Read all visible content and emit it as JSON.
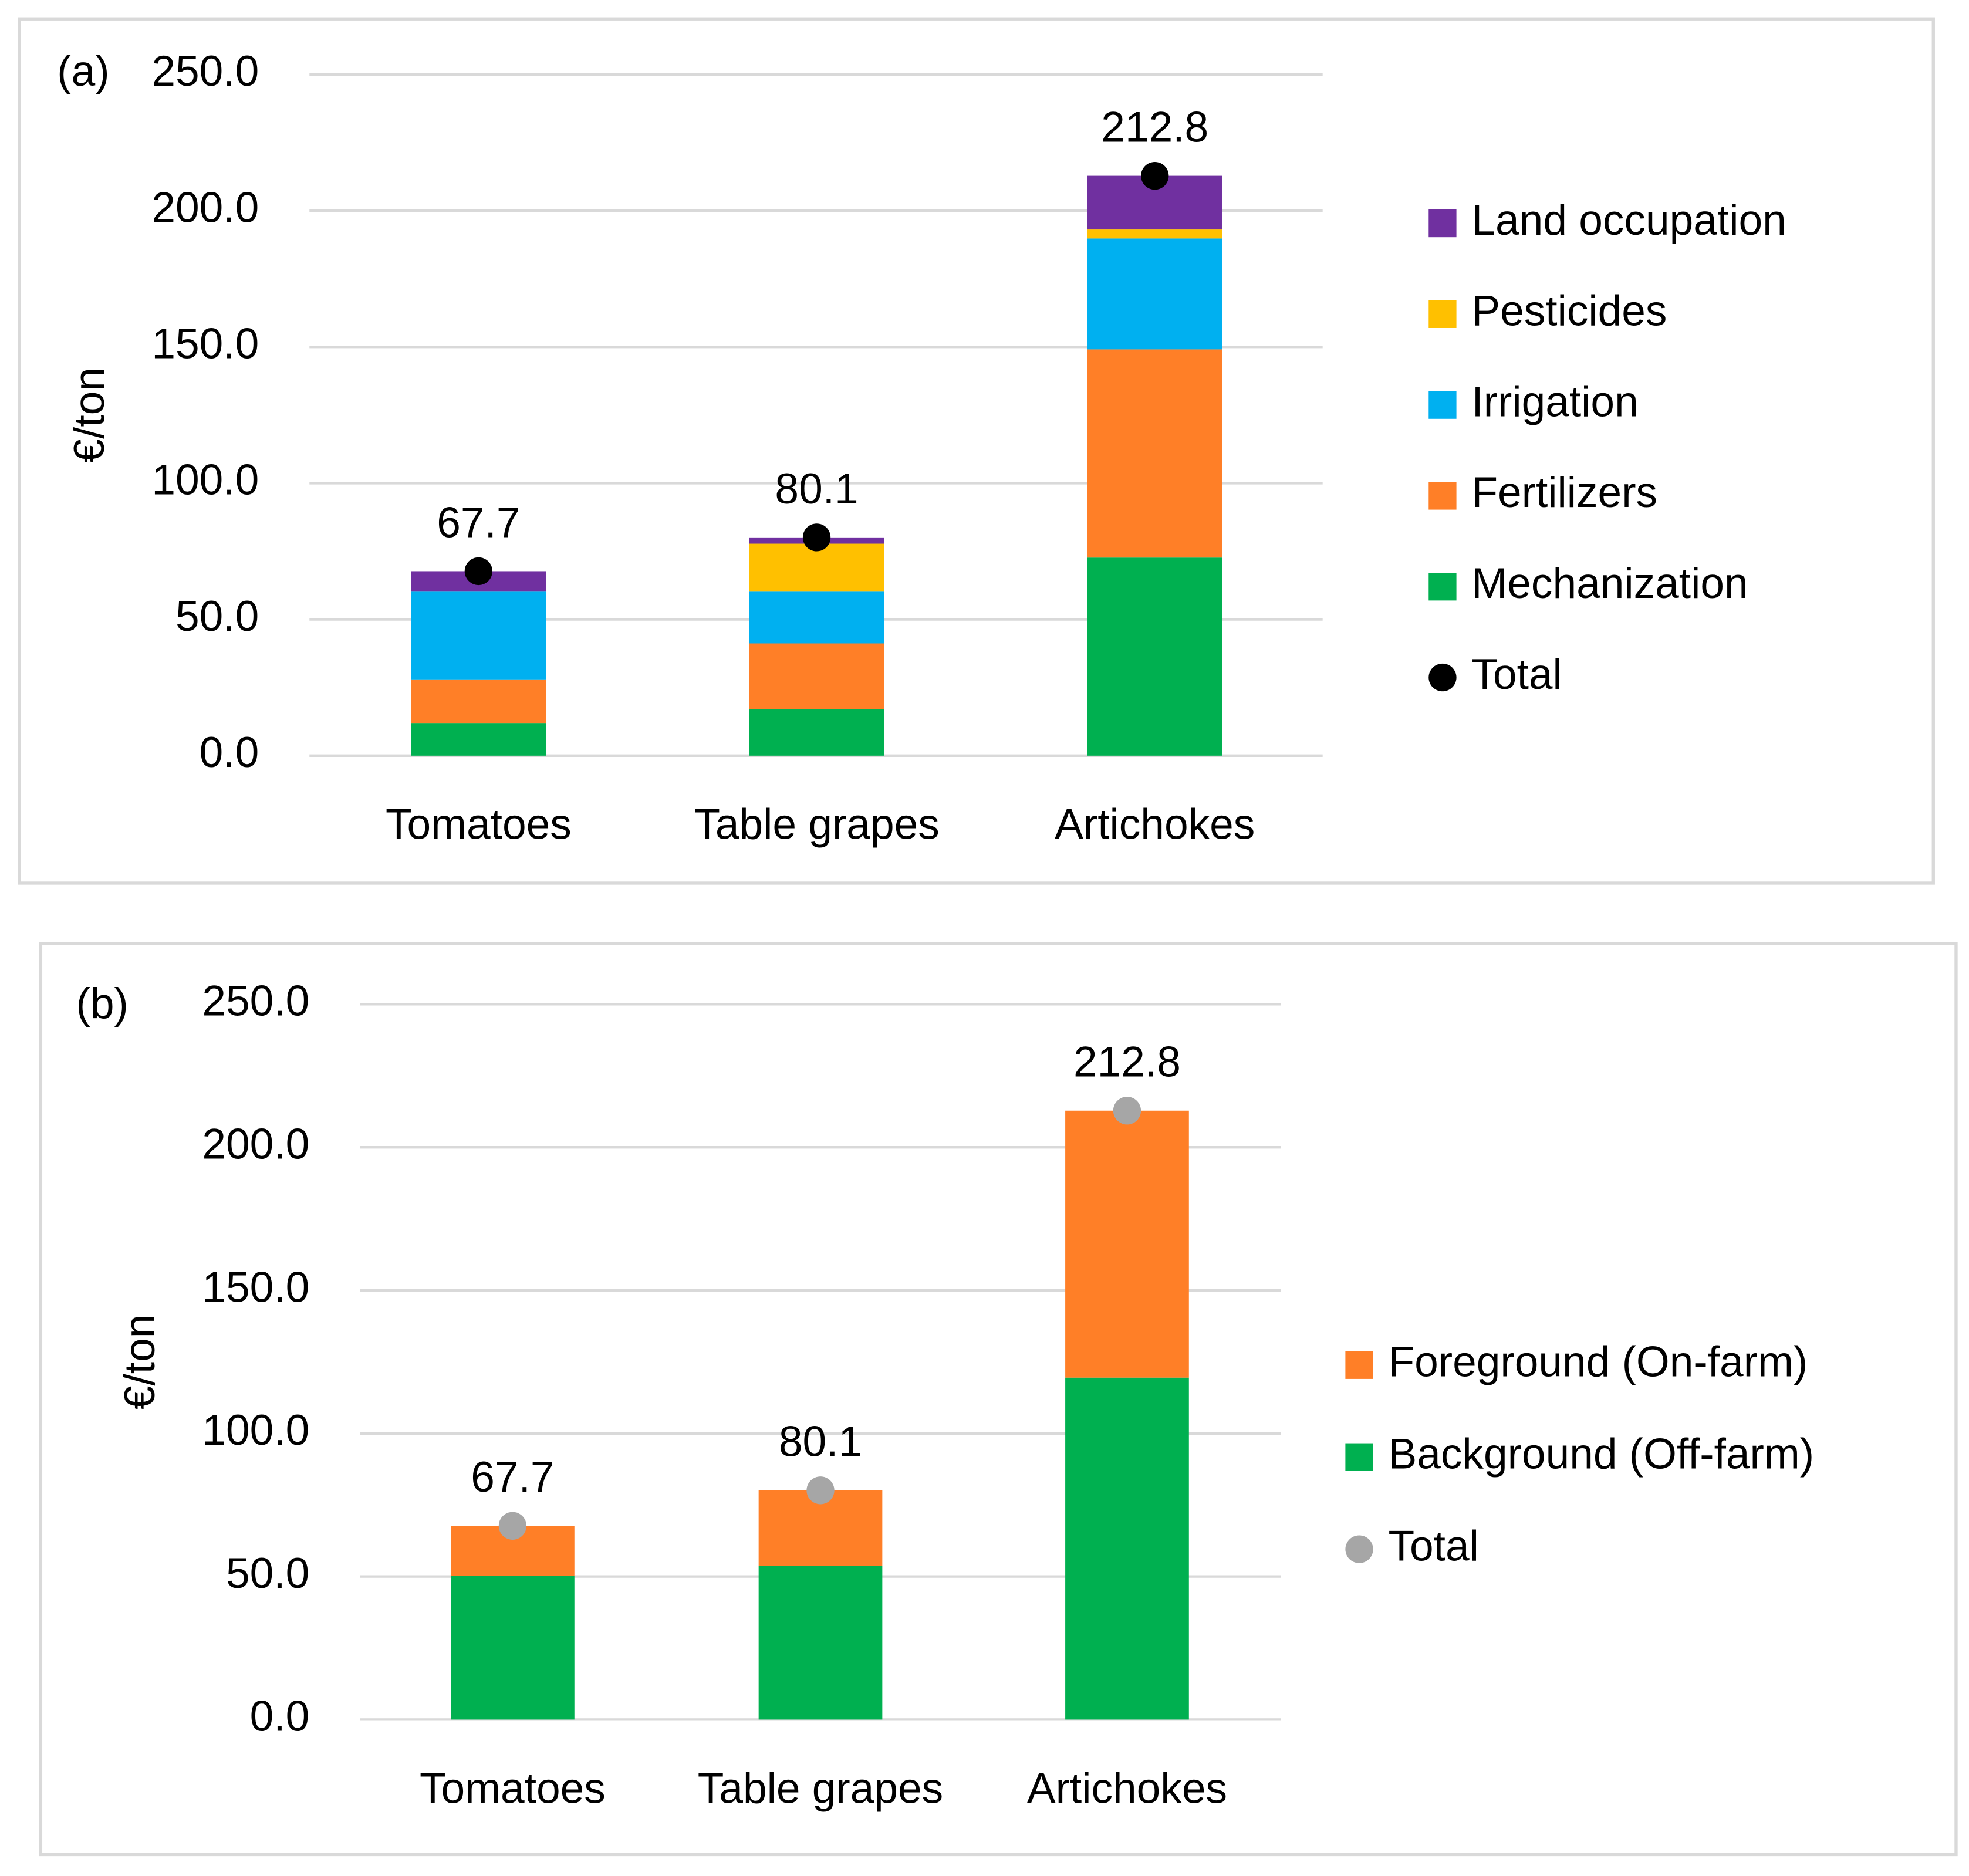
{
  "chart_data": [
    {
      "type": "bar",
      "stacked": true,
      "panel_label": "(a)",
      "y_label": "€/ton",
      "categories": [
        "Tomatoes",
        "Table grapes",
        "Artichokes"
      ],
      "series": [
        {
          "name": "Mechanization",
          "color": "#00b050",
          "values": [
            12.0,
            17.1,
            72.7
          ]
        },
        {
          "name": "Fertilizers",
          "color": "#ff7f27",
          "values": [
            16.0,
            24.1,
            76.4
          ]
        },
        {
          "name": "Irrigation",
          "color": "#00b0f0",
          "values": [
            32.2,
            19.0,
            40.7
          ]
        },
        {
          "name": "Pesticides",
          "color": "#ffc000",
          "values": [
            0,
            17.6,
            3.3
          ]
        },
        {
          "name": "Land occupation",
          "color": "#7030a0",
          "values": [
            7.5,
            2.3,
            19.7
          ]
        }
      ],
      "totals": {
        "name": "Total",
        "color": "#000000",
        "values": [
          67.7,
          80.1,
          212.8
        ]
      },
      "ylim": [
        0,
        250
      ],
      "yticks": [
        {
          "value": 0,
          "label": "0.0"
        },
        {
          "value": 50,
          "label": "50.0"
        },
        {
          "value": 100,
          "label": "100.0"
        },
        {
          "value": 150,
          "label": "150.0"
        },
        {
          "value": 200,
          "label": "200.0"
        },
        {
          "value": 250,
          "label": "250.0"
        }
      ],
      "grid": true,
      "legend": "right"
    },
    {
      "type": "bar",
      "stacked": true,
      "panel_label": "(b)",
      "y_label": "€/ton",
      "categories": [
        "Tomatoes",
        "Table grapes",
        "Artichokes"
      ],
      "series": [
        {
          "name": "Background (Off-farm)",
          "color": "#00b050",
          "values": [
            50.3,
            53.8,
            119.5
          ]
        },
        {
          "name": "Foreground (On-farm)",
          "color": "#ff7f27",
          "values": [
            17.4,
            26.3,
            93.3
          ]
        }
      ],
      "totals": {
        "name": "Total",
        "color": "#a6a6a6",
        "values": [
          67.7,
          80.1,
          212.8
        ]
      },
      "ylim": [
        0,
        250
      ],
      "yticks": [
        {
          "value": 0,
          "label": "0.0"
        },
        {
          "value": 50,
          "label": "50.0"
        },
        {
          "value": 100,
          "label": "100.0"
        },
        {
          "value": 150,
          "label": "150.0"
        },
        {
          "value": 200,
          "label": "200.0"
        },
        {
          "value": 250,
          "label": "250.0"
        }
      ],
      "grid": true,
      "legend": "right"
    }
  ]
}
